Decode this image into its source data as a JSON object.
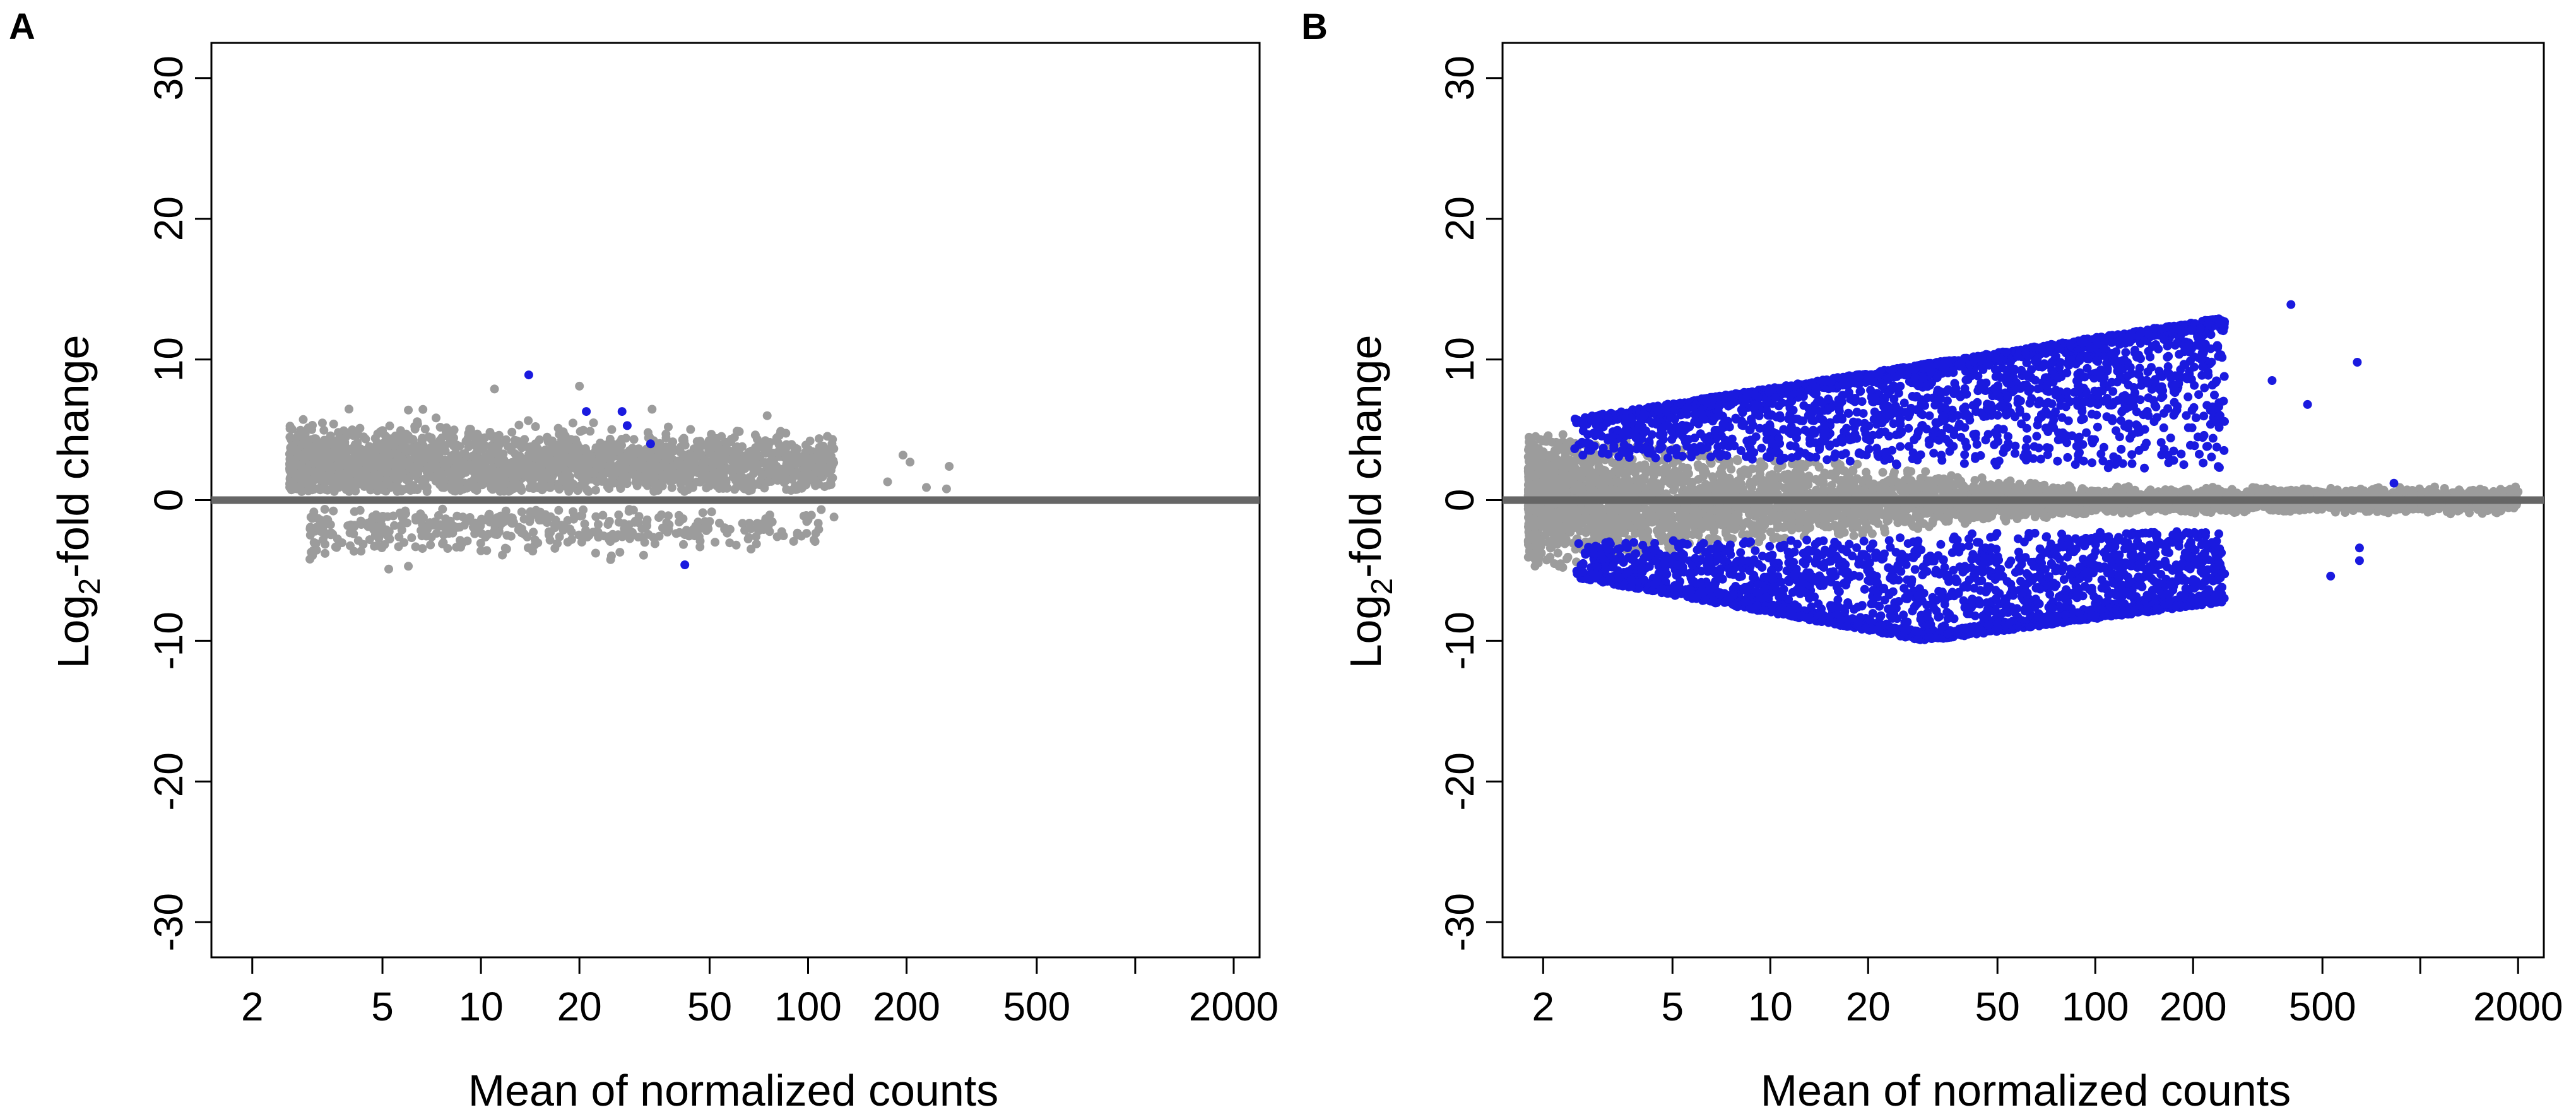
{
  "colors": {
    "nonsignificant": "#9c9c9c",
    "significant": "#1a1adf",
    "zero_line": "#666666",
    "axis": "#000000"
  },
  "chart_data": [
    {
      "panel": "A",
      "type": "scatter",
      "xlabel": "Mean of normalized counts",
      "ylabel_main": "Log",
      "ylabel_sub": "2",
      "ylabel_rest": "-fold change",
      "x_scale": "log",
      "xlim": [
        1.5,
        2400
      ],
      "ylim": [
        -32.5,
        32.5
      ],
      "x_ticks": [
        2,
        5,
        10,
        20,
        50,
        100,
        200,
        500,
        1000,
        2000
      ],
      "x_tick_labels": [
        "2",
        "5",
        "10",
        "20",
        "50",
        "100",
        "200",
        "500",
        "",
        "2000"
      ],
      "y_ticks": [
        -30,
        -20,
        -10,
        0,
        10,
        20,
        30
      ],
      "y_tick_labels": [
        "-30",
        "-20",
        "-10",
        "0",
        "10",
        "20",
        "30"
      ],
      "zero_line": 0,
      "grid": false,
      "series": [
        {
          "role": "nonsignificant",
          "clusters": [
            {
              "x_range": [
                2.6,
                120
              ],
              "y_center": 2.5,
              "y_spread": 1.3,
              "count": 2200,
              "y_max": 5.5
            },
            {
              "x_range": [
                3,
                110
              ],
              "y_center": -2.0,
              "y_spread": 0.9,
              "count": 420,
              "y_max": 4.5
            }
          ],
          "points": [
            {
              "x": 6,
              "y": 6.4
            },
            {
              "x": 11,
              "y": 7.9
            },
            {
              "x": 20,
              "y": 8.1
            },
            {
              "x": 75,
              "y": 6.0
            },
            {
              "x": 175,
              "y": 1.3
            },
            {
              "x": 195,
              "y": 3.2
            },
            {
              "x": 205,
              "y": 2.7
            },
            {
              "x": 230,
              "y": 0.9
            },
            {
              "x": 270,
              "y": 2.4
            },
            {
              "x": 265,
              "y": 0.8
            },
            {
              "x": 3,
              "y": -4.2
            },
            {
              "x": 6,
              "y": -4.7
            },
            {
              "x": 10,
              "y": -3.6
            },
            {
              "x": 100,
              "y": -1.4
            },
            {
              "x": 120,
              "y": -1.2
            }
          ]
        },
        {
          "role": "significant",
          "points": [
            {
              "x": 14,
              "y": 8.9
            },
            {
              "x": 21,
              "y": 6.3
            },
            {
              "x": 27,
              "y": 6.3
            },
            {
              "x": 28,
              "y": 5.3
            },
            {
              "x": 33,
              "y": 4.0
            },
            {
              "x": 42,
              "y": -4.6
            }
          ]
        }
      ]
    },
    {
      "panel": "B",
      "type": "scatter",
      "xlabel": "Mean of normalized counts",
      "ylabel_main": "Log",
      "ylabel_sub": "2",
      "ylabel_rest": "-fold change",
      "x_scale": "log",
      "xlim": [
        1.5,
        2400
      ],
      "ylim": [
        -32.5,
        32.5
      ],
      "x_ticks": [
        2,
        5,
        10,
        20,
        50,
        100,
        200,
        500,
        1000,
        2000
      ],
      "x_tick_labels": [
        "2",
        "5",
        "10",
        "20",
        "50",
        "100",
        "200",
        "500",
        "",
        "2000"
      ],
      "y_ticks": [
        -30,
        -20,
        -10,
        0,
        10,
        20,
        30
      ],
      "y_tick_labels": [
        "-30",
        "-20",
        "-10",
        "0",
        "10",
        "20",
        "30"
      ],
      "zero_line": 0,
      "grid": false,
      "series": [
        {
          "role": "nonsignificant",
          "band": {
            "x_range": [
              1.8,
              2000
            ],
            "half_width_at_2": 5.0,
            "half_width_at_100": 1.0,
            "count": 4200
          },
          "points": [
            {
              "x": 700,
              "y": 0.3
            },
            {
              "x": 1200,
              "y": 0.2
            },
            {
              "x": 1800,
              "y": 0.2
            },
            {
              "x": 600,
              "y": -0.3
            }
          ]
        },
        {
          "role": "significant",
          "envelope": {
            "x_range": [
              2.5,
              250
            ],
            "y_upper_at_2_5": 5.8,
            "y_upper_at_250": 13.0,
            "y_lower_at_2_5": -5.5,
            "y_lower_at_30": -10.0,
            "inner_min_abs": 2.0,
            "count": 5200
          },
          "points": [
            {
              "x": 400,
              "y": 13.9
            },
            {
              "x": 640,
              "y": 9.8
            },
            {
              "x": 830,
              "y": 1.2
            },
            {
              "x": 530,
              "y": -5.4
            },
            {
              "x": 650,
              "y": -3.4
            },
            {
              "x": 650,
              "y": -4.3
            },
            {
              "x": 450,
              "y": 6.8
            },
            {
              "x": 350,
              "y": 8.5
            }
          ]
        }
      ]
    }
  ]
}
